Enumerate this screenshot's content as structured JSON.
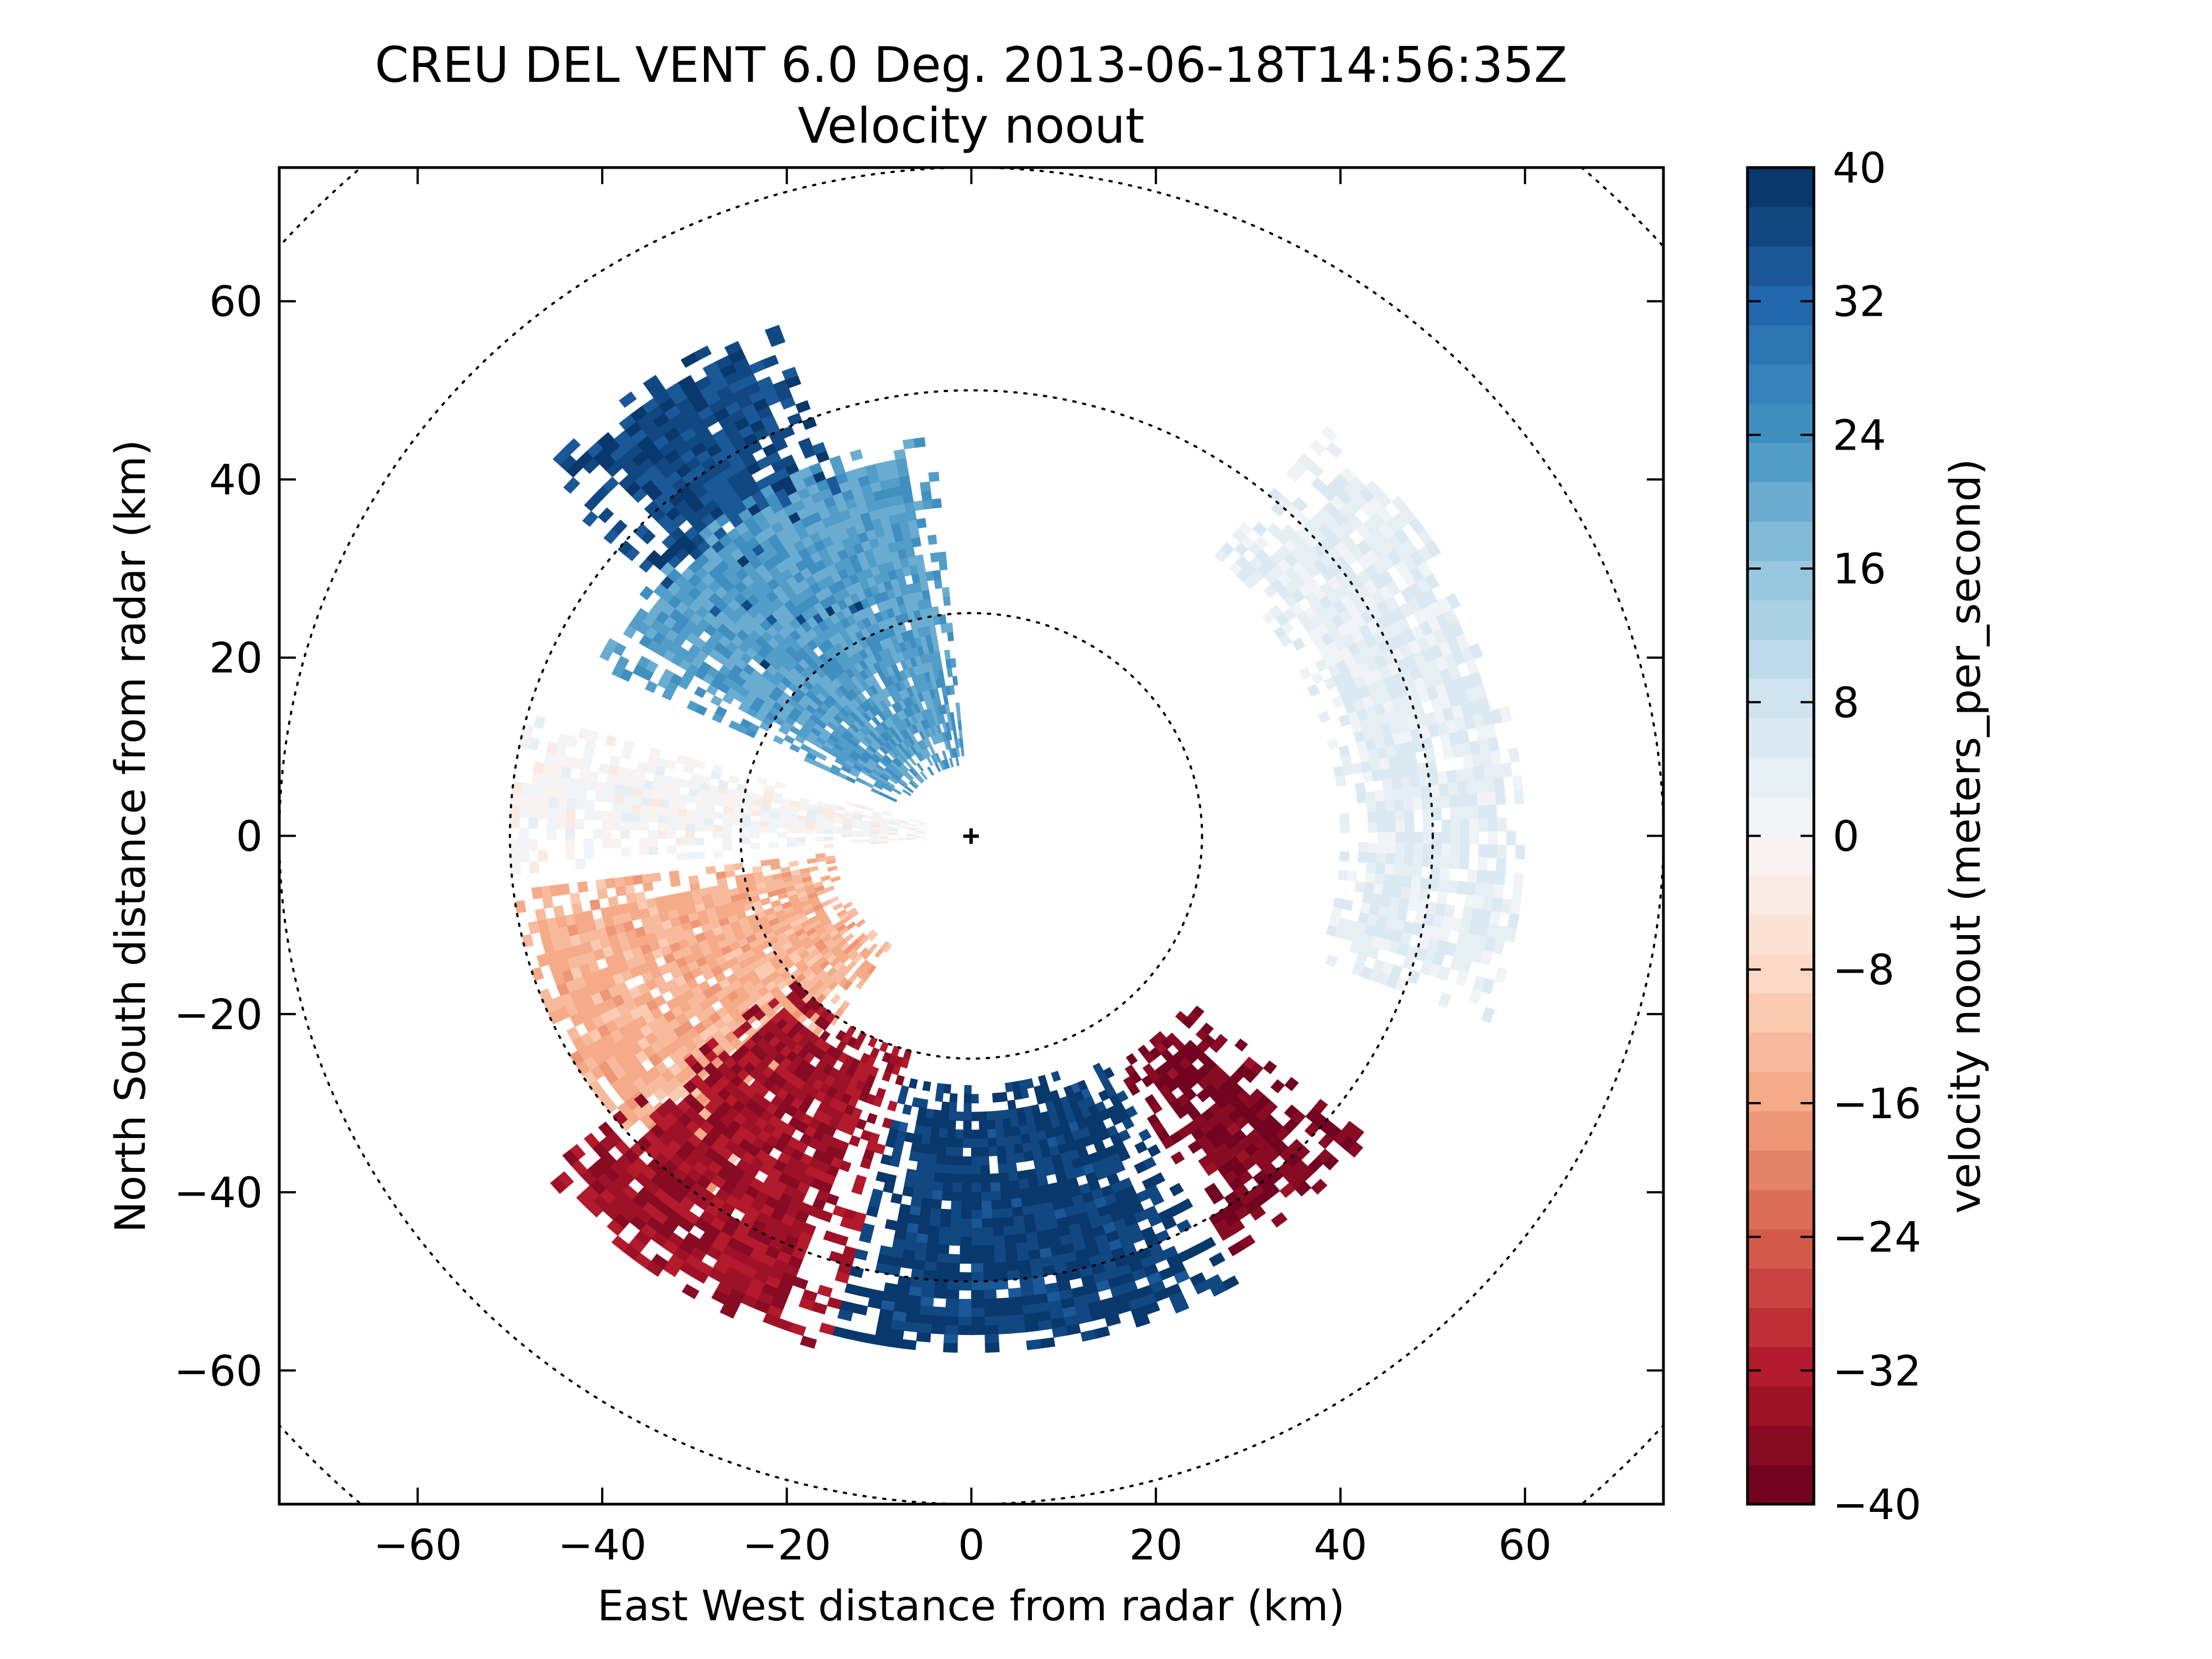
{
  "chart_data": {
    "type": "heatmap",
    "subtype": "radar-ppi",
    "title": "CREU DEL VENT 6.0 Deg. 2013-06-18T14:56:35Z",
    "subtitle": "Velocity noout",
    "xlabel": "East West distance from radar (km)",
    "ylabel": "North South distance from radar (km)",
    "xlim": [
      -75,
      75
    ],
    "ylim": [
      -75,
      75
    ],
    "xticks": [
      -60,
      -40,
      -20,
      0,
      20,
      40,
      60
    ],
    "yticks": [
      -60,
      -40,
      -20,
      0,
      20,
      40,
      60
    ],
    "range_rings_km": [
      25,
      50,
      75,
      100
    ],
    "radar_location": [
      0,
      0
    ],
    "grid": false,
    "colorbar": {
      "label": "velocity noout (meters_per_second)",
      "min": -40,
      "max": 40,
      "levels": 34,
      "ticks": [
        40,
        32,
        24,
        16,
        8,
        0,
        -8,
        -16,
        -24,
        -32,
        -40
      ],
      "tick_labels": [
        "40",
        "32",
        "24",
        "16",
        "8",
        "0",
        "−8",
        "−16",
        "−24",
        "−32",
        "−40"
      ],
      "colormap": "RdBu",
      "color_stops": [
        "#67001f",
        "#b2182b",
        "#d6604d",
        "#f4a582",
        "#fddbc7",
        "#f7f7f7",
        "#d1e5f0",
        "#92c5de",
        "#4393c3",
        "#2166ac",
        "#053061"
      ]
    },
    "echo_regions": [
      {
        "description": "northwest inbound-away core",
        "azimuth_deg": [
          310,
          340
        ],
        "range_km": [
          25,
          62
        ],
        "velocity_ms": 36
      },
      {
        "description": "northwest near-range",
        "azimuth_deg": [
          295,
          355
        ],
        "range_km": [
          8,
          45
        ],
        "velocity_ms": 22
      },
      {
        "description": "west zero line",
        "azimuth_deg": [
          265,
          285
        ],
        "range_km": [
          5,
          50
        ],
        "velocity_ms": 0
      },
      {
        "description": "southwest outbound",
        "azimuth_deg": [
          215,
          262
        ],
        "range_km": [
          15,
          50
        ],
        "velocity_ms": -14
      },
      {
        "description": "south-southwest core",
        "azimuth_deg": [
          195,
          230
        ],
        "range_km": [
          25,
          60
        ],
        "velocity_ms": -34
      },
      {
        "description": "south blue cell",
        "azimuth_deg": [
          150,
          195
        ],
        "range_km": [
          28,
          58
        ],
        "velocity_ms": 38
      },
      {
        "description": "southeast red cell",
        "azimuth_deg": [
          128,
          148
        ],
        "range_km": [
          30,
          55
        ],
        "velocity_ms": -38
      },
      {
        "description": "east arc",
        "azimuth_deg": [
          40,
          110
        ],
        "range_km": [
          40,
          60
        ],
        "velocity_ms": 4
      }
    ]
  }
}
